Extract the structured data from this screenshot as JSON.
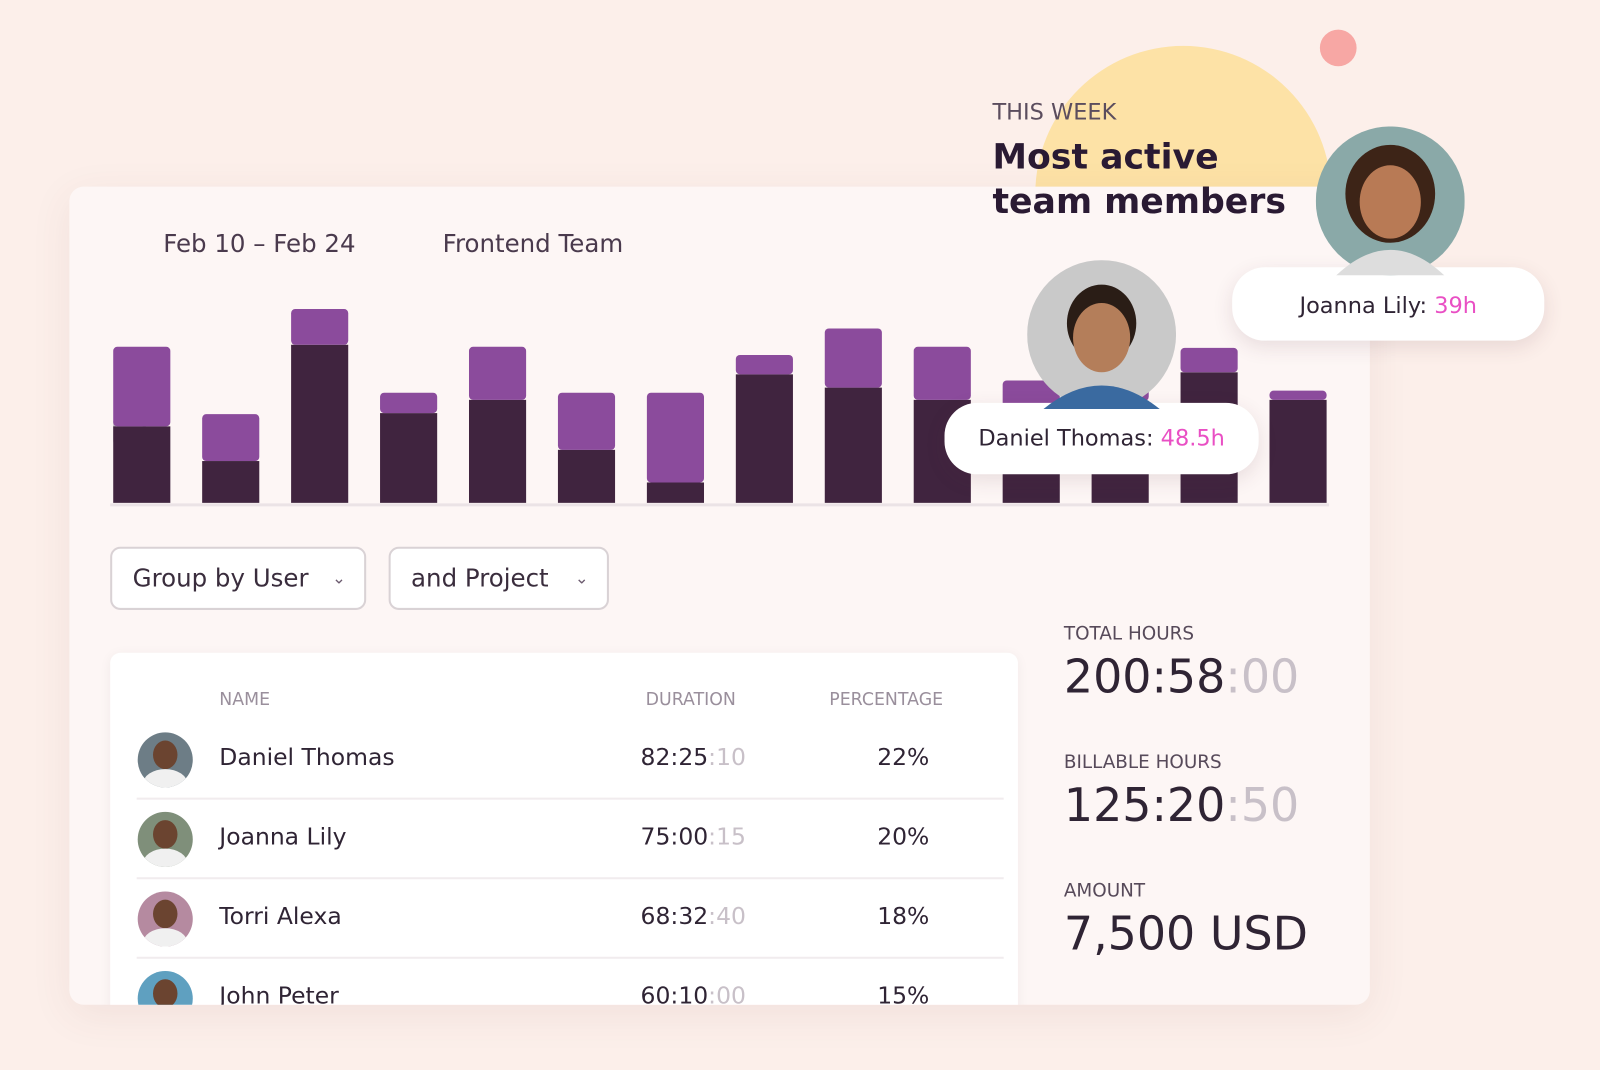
{
  "header": {
    "date_range": "Feb 10 – Feb 24",
    "team": "Frontend Team"
  },
  "chart_data": {
    "type": "bar",
    "stacked": true,
    "ylim": [
      0,
      200
    ],
    "series": [
      {
        "color": "#40243f",
        "values": [
          75,
          41,
          155,
          88,
          101,
          52,
          20,
          126,
          113,
          101,
          90,
          100,
          128,
          101
        ]
      },
      {
        "color": "#8b4b9c",
        "values": [
          78,
          46,
          35,
          20,
          52,
          56,
          88,
          19,
          58,
          52,
          30,
          30,
          24,
          9
        ]
      }
    ]
  },
  "filters": {
    "group_by": "Group by User",
    "and_by": "and Project"
  },
  "table": {
    "columns": [
      "NAME",
      "DURATION",
      "PERCENTAGE"
    ],
    "rows": [
      {
        "name": "Daniel Thomas",
        "duration": "82:25",
        "duration_seconds": ":10",
        "percentage": "22%"
      },
      {
        "name": "Joanna Lily",
        "duration": "75:00",
        "duration_seconds": ":15",
        "percentage": "20%"
      },
      {
        "name": "Torri Alexa",
        "duration": "68:32",
        "duration_seconds": ":40",
        "percentage": "18%"
      },
      {
        "name": "John Peter",
        "duration": "60:10",
        "duration_seconds": ":00",
        "percentage": "15%"
      }
    ]
  },
  "stats": [
    {
      "label": "TOTAL HOURS",
      "value": "200:58",
      "value_dim": ":00"
    },
    {
      "label": "BILLABLE HOURS",
      "value": "125:20",
      "value_dim": ":50"
    },
    {
      "label": "AMOUNT",
      "value": "7,500 USD"
    }
  ],
  "highlight": {
    "eyebrow": "THIS WEEK",
    "title_lines": [
      "Most active",
      "team members"
    ],
    "members": [
      {
        "name": "Daniel Thomas:",
        "hours": "48.5h"
      },
      {
        "name": "Joanna Lily:",
        "hours": "39h"
      }
    ]
  }
}
